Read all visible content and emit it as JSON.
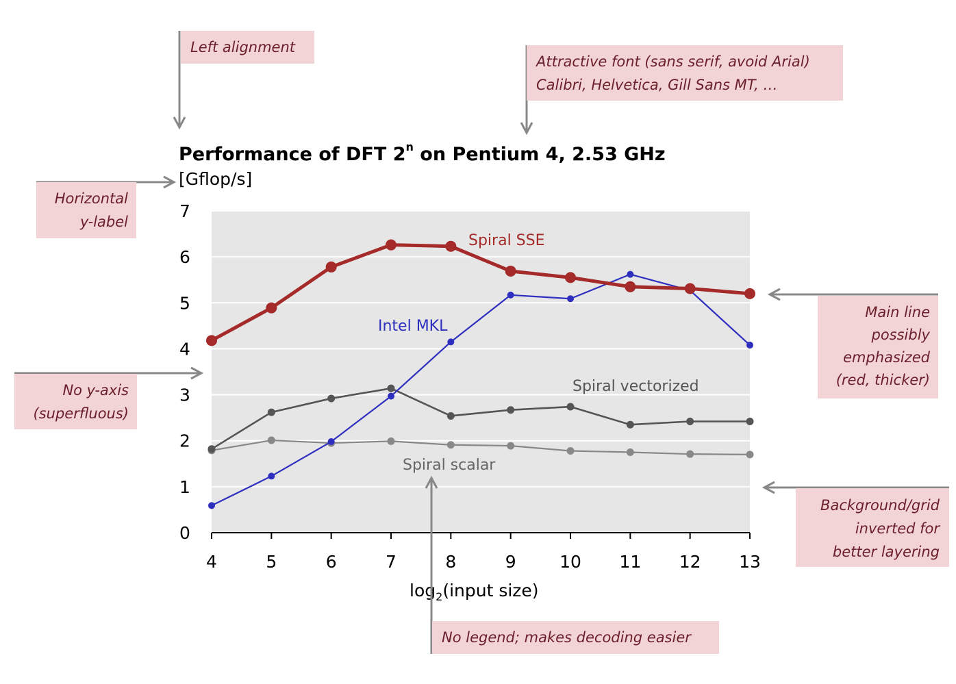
{
  "chart_data": {
    "type": "line",
    "title_main": "Performance of DFT 2",
    "title_sup": "n",
    "title_rest": " on Pentium 4, 2.53 GHz",
    "ylabel": "[Gflop/s]",
    "xlabel_pre": "log",
    "xlabel_sub": "2",
    "xlabel_post": "(input size)",
    "x": [
      4,
      5,
      6,
      7,
      8,
      9,
      10,
      11,
      12,
      13
    ],
    "xlim": [
      4,
      13
    ],
    "ylim": [
      0,
      7
    ],
    "yticks": [
      0,
      1,
      2,
      3,
      4,
      5,
      6,
      7
    ],
    "grid": true,
    "legend": "none",
    "series": [
      {
        "name": "Spiral SSE",
        "color": "#a52a2a",
        "values": [
          4.18,
          4.89,
          5.78,
          6.26,
          6.23,
          5.69,
          5.55,
          5.35,
          5.31,
          5.2
        ]
      },
      {
        "name": "Intel MKL",
        "color": "#2f2fbf",
        "values": [
          0.59,
          1.23,
          1.98,
          2.97,
          4.15,
          5.17,
          5.09,
          5.62,
          5.27,
          4.08
        ]
      },
      {
        "name": "Spiral vectorized",
        "color": "#555555",
        "values": [
          1.82,
          2.62,
          2.92,
          3.14,
          2.54,
          2.67,
          2.74,
          2.35,
          2.42,
          2.42
        ]
      },
      {
        "name": "Spiral scalar",
        "color": "#888888",
        "values": [
          1.79,
          2.01,
          1.95,
          1.99,
          1.91,
          1.89,
          1.78,
          1.75,
          1.71,
          1.7
        ]
      }
    ]
  },
  "annotations": {
    "left_alignment": "Left alignment",
    "font_line1": "Attractive font (sans serif, avoid Arial)",
    "font_line2": "Calibri, Helvetica, Gill Sans MT, …",
    "ylabel_line1": "Horizontal",
    "ylabel_line2": "y-label",
    "no_yaxis_line1": "No y-axis",
    "no_yaxis_line2": "(superfluous)",
    "main_line1": "Main line",
    "main_line2": "possibly",
    "main_line3": "emphasized",
    "main_line4": "(red, thicker)",
    "bg_line1": "Background/grid",
    "bg_line2": "inverted for",
    "bg_line3": "better layering",
    "legend_note": "No legend; makes decoding easier"
  },
  "colors": {
    "plot_background": "#e6e6e6",
    "gridline": "#ffffff",
    "note_background": "#f2d3d6",
    "note_text": "#6b1f2a",
    "arrow": "#888888"
  }
}
